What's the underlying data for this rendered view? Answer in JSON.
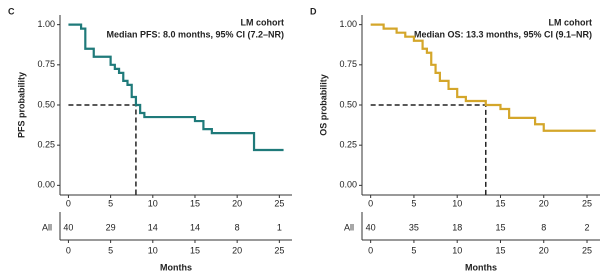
{
  "chart_data": [
    {
      "type": "step",
      "panel": "C",
      "annotation": "LM cohort",
      "subtitle": "Median PFS: 8.0 months, 95% CI (7.2–NR)",
      "ylabel": "PFS probability",
      "xlabel": "Months",
      "xlim": [
        -1,
        26.5
      ],
      "ylim": [
        -0.06,
        1.06
      ],
      "xticks": [
        0,
        5,
        10,
        15,
        20,
        25
      ],
      "yticks": [
        {
          "value": 0,
          "label": "0.00"
        },
        {
          "value": 0.25,
          "label": "0.25"
        },
        {
          "value": 0.5,
          "label": "0.50"
        },
        {
          "value": 0.75,
          "label": "0.75"
        },
        {
          "value": 1,
          "label": "1.00"
        }
      ],
      "median": {
        "x": 8,
        "y": 0.5
      },
      "series": [
        {
          "name": "All",
          "color": "#1f7a7a",
          "x": [
            0,
            1.5,
            2,
            3,
            5,
            5.5,
            6,
            6.5,
            7,
            7.5,
            8,
            8.5,
            9,
            15,
            16,
            17,
            22,
            25.5
          ],
          "values": [
            1,
            0.975,
            0.85,
            0.8,
            0.75,
            0.725,
            0.7,
            0.65,
            0.625,
            0.55,
            0.5,
            0.45,
            0.425,
            0.4,
            0.35,
            0.325,
            0.22,
            0.22
          ],
          "at_risk": [
            40,
            29,
            14,
            14,
            8,
            1
          ]
        }
      ]
    },
    {
      "type": "step",
      "panel": "D",
      "annotation": "LM cohort",
      "subtitle": "Median OS: 13.3 months, 95% CI (9.1–NR)",
      "ylabel": "OS probability",
      "xlabel": "Months",
      "xlim": [
        -1,
        26.5
      ],
      "ylim": [
        -0.06,
        1.06
      ],
      "xticks": [
        0,
        5,
        10,
        15,
        20,
        25
      ],
      "yticks": [
        {
          "value": 0,
          "label": "0.00"
        },
        {
          "value": 0.25,
          "label": "0.25"
        },
        {
          "value": 0.5,
          "label": "0.50"
        },
        {
          "value": 0.75,
          "label": "0.75"
        },
        {
          "value": 1,
          "label": "1.00"
        }
      ],
      "median": {
        "x": 13.3,
        "y": 0.5
      },
      "series": [
        {
          "name": "All",
          "color": "#d4a62a",
          "x": [
            0,
            1.5,
            3,
            4,
            5,
            6,
            6.5,
            7,
            7.5,
            8,
            9,
            10,
            11,
            13.3,
            15,
            16,
            19,
            20,
            26
          ],
          "values": [
            1,
            0.975,
            0.95,
            0.925,
            0.9,
            0.85,
            0.825,
            0.75,
            0.7,
            0.65,
            0.6,
            0.55,
            0.525,
            0.5,
            0.475,
            0.42,
            0.38,
            0.34,
            0.34
          ],
          "at_risk": [
            40,
            35,
            18,
            15,
            8,
            2
          ]
        }
      ]
    }
  ]
}
